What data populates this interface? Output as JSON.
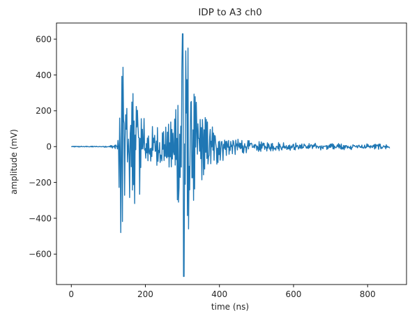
{
  "chart_data": {
    "type": "line",
    "title": "IDP to A3 ch0",
    "xlabel": "time (ns)",
    "ylabel": "amplitude (mV)",
    "xlim": [
      -40,
      905
    ],
    "ylim": [
      -770,
      690
    ],
    "xticks": [
      0,
      200,
      400,
      600,
      800
    ],
    "yticks": [
      -600,
      -400,
      -200,
      0,
      200,
      400,
      600
    ],
    "xtick_labels": [
      "0",
      "200",
      "400",
      "600",
      "800"
    ],
    "ytick_labels": [
      "−600",
      "−400",
      "−200",
      "0",
      "200",
      "400",
      "600"
    ],
    "grid": false,
    "legend": "none",
    "series": [
      {
        "color": "#1f77b4",
        "x_start": 0,
        "x_step": 1.5,
        "x_end": 860,
        "description_of_envelope": "signal samples (mV) at 1.5 ns spacing",
        "envelope": [
          [
            0,
            2
          ],
          [
            100,
            3
          ],
          [
            118,
            12
          ],
          [
            127,
            40
          ],
          [
            130,
            470
          ],
          [
            138,
            480
          ],
          [
            150,
            400
          ],
          [
            165,
            330
          ],
          [
            180,
            300
          ],
          [
            200,
            150
          ],
          [
            220,
            110
          ],
          [
            250,
            100
          ],
          [
            275,
            150
          ],
          [
            288,
            330
          ],
          [
            298,
            560
          ],
          [
            303,
            680
          ],
          [
            312,
            600
          ],
          [
            330,
            300
          ],
          [
            345,
            230
          ],
          [
            370,
            130
          ],
          [
            400,
            90
          ],
          [
            430,
            50
          ],
          [
            470,
            35
          ],
          [
            520,
            25
          ],
          [
            600,
            20
          ],
          [
            700,
            18
          ],
          [
            800,
            16
          ],
          [
            860,
            14
          ]
        ]
      }
    ]
  }
}
